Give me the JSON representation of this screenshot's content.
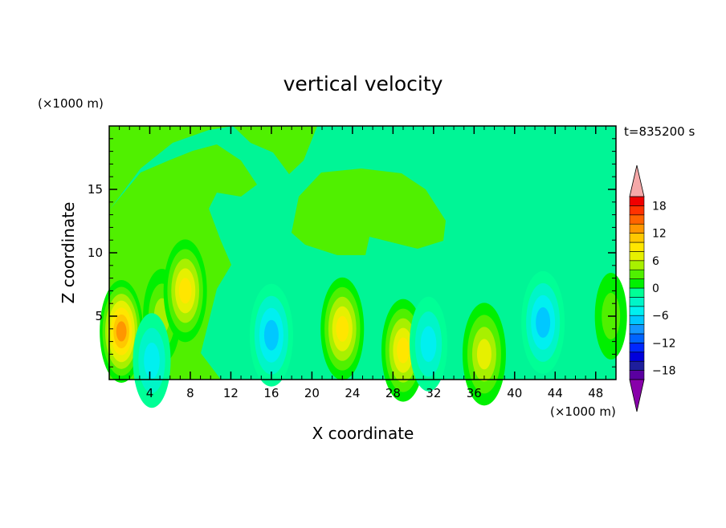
{
  "chart_data": {
    "type": "heatmap",
    "title": "vertical velocity",
    "xlabel": "X coordinate",
    "ylabel": "Z coordinate",
    "x_unit": "(×1000 m)",
    "y_unit": "(×1000 m)",
    "time_label": "t=835200 s",
    "xlim": [
      0,
      50
    ],
    "ylim": [
      0,
      20
    ],
    "x_ticks": [
      4,
      8,
      12,
      16,
      20,
      24,
      28,
      32,
      36,
      40,
      44,
      48
    ],
    "y_ticks": [
      5,
      10,
      15
    ],
    "colorbar": {
      "labels": [
        "18",
        "12",
        "6",
        "0",
        "−6",
        "−12",
        "−18"
      ],
      "label_values": [
        18,
        12,
        6,
        0,
        -6,
        -12,
        -18
      ],
      "levels": [
        -20,
        -18,
        -16,
        -14,
        -12,
        -10,
        -8,
        -6,
        -4,
        -2,
        0,
        2,
        4,
        6,
        8,
        10,
        12,
        14,
        16,
        18,
        20
      ],
      "colors": [
        "#5a00a0",
        "#1e1e9c",
        "#0000dc",
        "#0028ff",
        "#0064ff",
        "#1496ff",
        "#00c8ff",
        "#00f0f0",
        "#00f5c8",
        "#00ff96",
        "#00f000",
        "#50f000",
        "#a8f000",
        "#e6f000",
        "#ffe600",
        "#ffc800",
        "#ff9600",
        "#ff6400",
        "#ff3200",
        "#f00000"
      ],
      "under_color": "#8800aa",
      "over_color": "#f5a8a8"
    },
    "features": [
      {
        "x": 1.2,
        "z": 3.8,
        "w": 14
      },
      {
        "x": 5.2,
        "z": 5.0,
        "w": 6
      },
      {
        "x": 7.5,
        "z": 7.0,
        "w": 9
      },
      {
        "x": 4.2,
        "z": 1.5,
        "w": -6
      },
      {
        "x": 16.0,
        "z": 3.5,
        "w": -8
      },
      {
        "x": 23.0,
        "z": 4.0,
        "w": 10
      },
      {
        "x": 29.0,
        "z": 2.3,
        "w": 10
      },
      {
        "x": 31.5,
        "z": 2.8,
        "w": -5
      },
      {
        "x": 37.0,
        "z": 2.0,
        "w": 7
      },
      {
        "x": 42.8,
        "z": 4.5,
        "w": -7
      },
      {
        "x": 49.5,
        "z": 5.0,
        "w": 3
      }
    ]
  }
}
